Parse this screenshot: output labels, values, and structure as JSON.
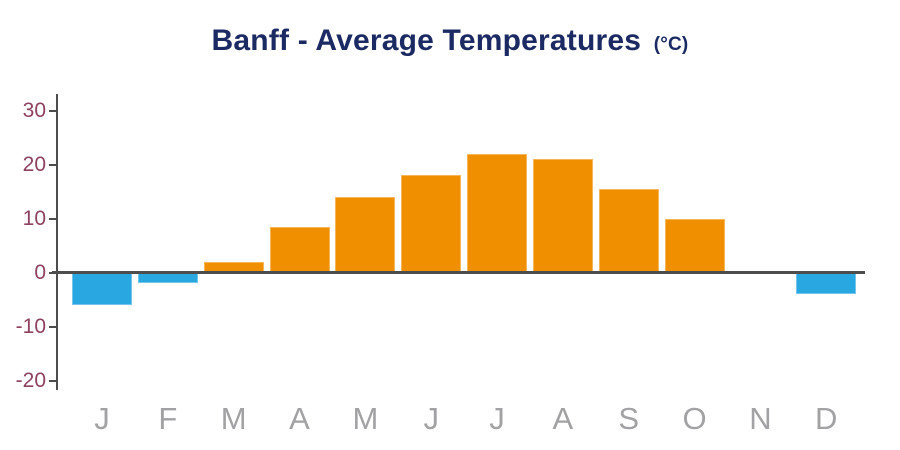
{
  "title": {
    "main": "Banff - Average Temperatures",
    "unit": "(°C)"
  },
  "chart_data": {
    "type": "bar",
    "title": "Banff - Average Temperatures (°C)",
    "xlabel": "",
    "ylabel": "",
    "categories": [
      "J",
      "F",
      "M",
      "A",
      "M",
      "J",
      "J",
      "A",
      "S",
      "O",
      "N",
      "D"
    ],
    "values": [
      -6,
      -2,
      2,
      8.5,
      14,
      18,
      22,
      21,
      15.5,
      10,
      0,
      -4
    ],
    "series_note": "single series; positive bars orange, negative bars blue; November is 0 (no bar drawn)",
    "ylim": [
      -20,
      30
    ],
    "yticks": [
      30,
      20,
      10,
      0,
      -10,
      -20
    ],
    "grid": false,
    "legend": false
  },
  "colors": {
    "title": "#1B2A63",
    "bar_positive": "#F09000",
    "bar_negative": "#29A7E0",
    "axis_line": "#4D4D4D",
    "y_tick_label": "#8E4160",
    "month_label": "#A2A2A4",
    "background": "#FFFFFF"
  }
}
